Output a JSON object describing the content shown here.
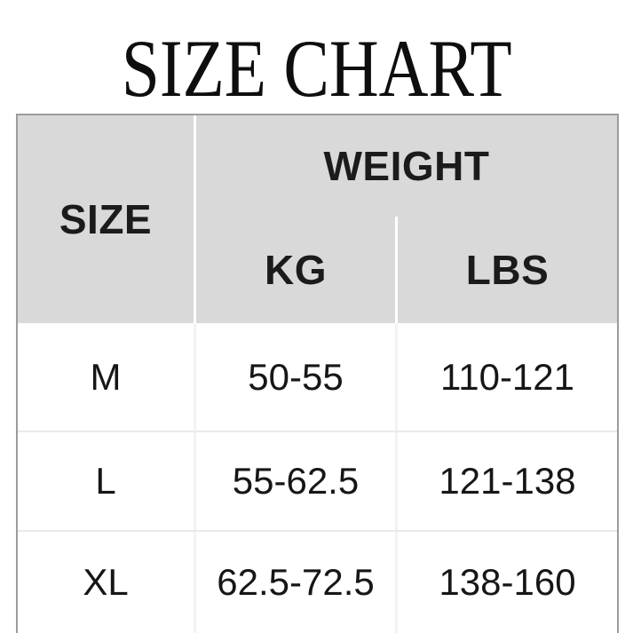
{
  "title": "SIZE CHART",
  "colors": {
    "header_bg": "#d9d9d9",
    "table_border": "#9c9c9c",
    "header_divider": "#ffffff",
    "body_divider": "#f3f3f3",
    "row_separator": "#e9e9e9",
    "title_text": "#0e0e0e",
    "cell_text": "#161616"
  },
  "chart_data": {
    "type": "table",
    "title": "SIZE CHART",
    "header": {
      "size": "SIZE",
      "weight_group": "WEIGHT",
      "kg": "KG",
      "lbs": "LBS"
    },
    "columns": [
      "SIZE",
      "KG",
      "LBS"
    ],
    "rows": [
      {
        "size": "M",
        "kg": "50-55",
        "lbs": "110-121"
      },
      {
        "size": "L",
        "kg": "55-62.5",
        "lbs": "121-138"
      },
      {
        "size": "XL",
        "kg": "62.5-72.5",
        "lbs": "138-160"
      }
    ]
  }
}
